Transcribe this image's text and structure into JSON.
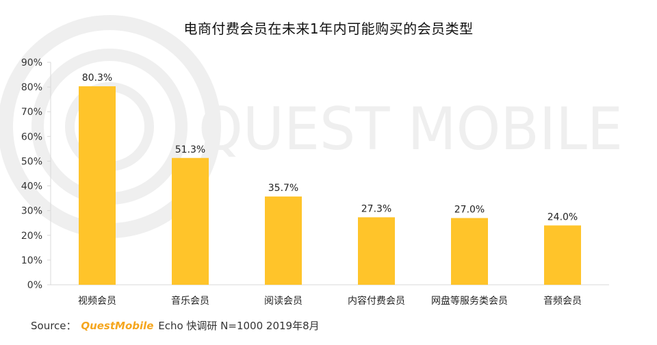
{
  "chart_data": {
    "type": "bar",
    "title": "电商付费会员在未来1年内可能购买的会员类型",
    "categories": [
      "视频会员",
      "音乐会员",
      "阅读会员",
      "内容付费会员",
      "网盘等服务类会员",
      "音频会员"
    ],
    "values": [
      80.3,
      51.3,
      35.7,
      27.3,
      27.0,
      24.0
    ],
    "value_labels": [
      "80.3%",
      "51.3%",
      "35.7%",
      "27.3%",
      "27.0%",
      "24.0%"
    ],
    "y_ticks": [
      "0%",
      "10%",
      "20%",
      "30%",
      "40%",
      "50%",
      "60%",
      "70%",
      "80%",
      "90%"
    ],
    "ylim": [
      0,
      90
    ],
    "xlabel": "",
    "ylabel": "",
    "grid": false,
    "bar_color": "#FFC42A"
  },
  "watermark": {
    "text": "QUEST MOBILE",
    "color": "#EFEFEF"
  },
  "source": {
    "prefix": "Source：",
    "brand": "QuestMobile",
    "rest": "Echo 快调研 N=1000 2019年8月",
    "brand_color": "#F5A61E"
  }
}
